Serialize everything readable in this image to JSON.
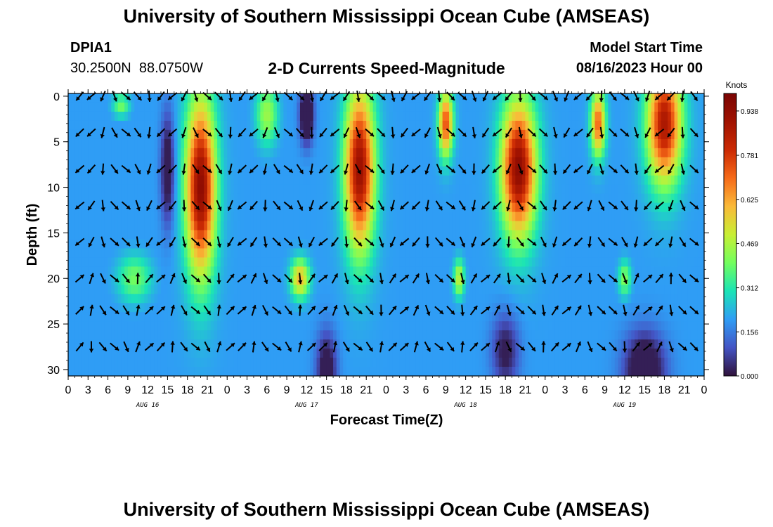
{
  "header": {
    "title": "University of Southern Mississippi Ocean Cube (AMSEAS)",
    "station_id": "DPIA1",
    "station_coords": "30.2500N  88.0750W",
    "chart_subtitle": "2-D Currents Speed-Magnitude",
    "model_start_label": "Model Start Time",
    "model_start_value": "08/16/2023 Hour 00"
  },
  "footer": {
    "title": "University of Southern Mississippi Ocean Cube (AMSEAS)"
  },
  "chart_data": {
    "type": "heatmap",
    "title": "2-D Currents Speed-Magnitude",
    "xlabel": "Forecast Time(Z)",
    "ylabel": "Depth (ft)",
    "x_ticks": [
      "0",
      "3",
      "6",
      "9",
      "12",
      "15",
      "18",
      "21",
      "0",
      "3",
      "6",
      "9",
      "12",
      "15",
      "18",
      "21",
      "0",
      "3",
      "6",
      "9",
      "12",
      "15",
      "18",
      "21",
      "0",
      "3",
      "6",
      "9",
      "12",
      "15",
      "18",
      "21",
      "0"
    ],
    "x_range_hours": [
      0,
      96
    ],
    "date_labels": [
      {
        "label": "AUG 16",
        "hour": 12
      },
      {
        "label": "AUG 17",
        "hour": 36
      },
      {
        "label": "AUG 18",
        "hour": 60
      },
      {
        "label": "AUG 19",
        "hour": 84
      }
    ],
    "y_ticks": [
      "0",
      "5",
      "10",
      "15",
      "20",
      "25",
      "30"
    ],
    "y_range_ft": [
      0,
      31
    ],
    "colorbar": {
      "unit": "Knots",
      "ticks": [
        "0.938",
        "0.781",
        "0.625",
        "0.469",
        "0.312",
        "0.156",
        "0.000"
      ],
      "range": [
        0,
        1.0
      ]
    },
    "description": "Current speed magnitude (knots) by depth and forecast hour",
    "speed_blobs": [
      {
        "h": 20,
        "d": 10,
        "sh": 3.0,
        "sd": 13,
        "v": 0.95
      },
      {
        "h": 44,
        "d": 8,
        "sh": 3.0,
        "sd": 12,
        "v": 0.92
      },
      {
        "h": 68,
        "d": 8,
        "sh": 3.5,
        "sd": 10,
        "v": 0.95
      },
      {
        "h": 90,
        "d": 3,
        "sh": 3.5,
        "sd": 9,
        "v": 0.88
      },
      {
        "h": 57,
        "d": 3,
        "sh": 1.5,
        "sd": 5,
        "v": 0.75
      },
      {
        "h": 80,
        "d": 3,
        "sh": 1.5,
        "sd": 5,
        "v": 0.72
      },
      {
        "h": 30,
        "d": 2,
        "sh": 2.5,
        "sd": 5,
        "v": 0.45
      },
      {
        "h": 10,
        "d": 20,
        "sh": 4.0,
        "sd": 4,
        "v": 0.4
      },
      {
        "h": 35,
        "d": 20,
        "sh": 2.0,
        "sd": 3,
        "v": 0.6
      },
      {
        "h": 59,
        "d": 20,
        "sh": 1.2,
        "sd": 3,
        "v": 0.5
      },
      {
        "h": 84,
        "d": 20,
        "sh": 1.5,
        "sd": 3,
        "v": 0.42
      },
      {
        "h": 8,
        "d": 1,
        "sh": 2.0,
        "sd": 2,
        "v": 0.4
      }
    ],
    "low_spots": [
      {
        "h": 36,
        "d": 2,
        "sh": 1.0,
        "sd": 3,
        "v": 0.35
      },
      {
        "h": 15,
        "d": 8,
        "sh": 1.0,
        "sd": 6,
        "v": 0.25
      },
      {
        "h": 39,
        "d": 30,
        "sh": 1.5,
        "sd": 4,
        "v": 0.25
      },
      {
        "h": 87,
        "d": 30,
        "sh": 3.0,
        "sd": 4,
        "v": 0.3
      },
      {
        "h": 66,
        "d": 28,
        "sh": 2.0,
        "sd": 4,
        "v": 0.2
      }
    ],
    "background_speed": 0.2
  }
}
